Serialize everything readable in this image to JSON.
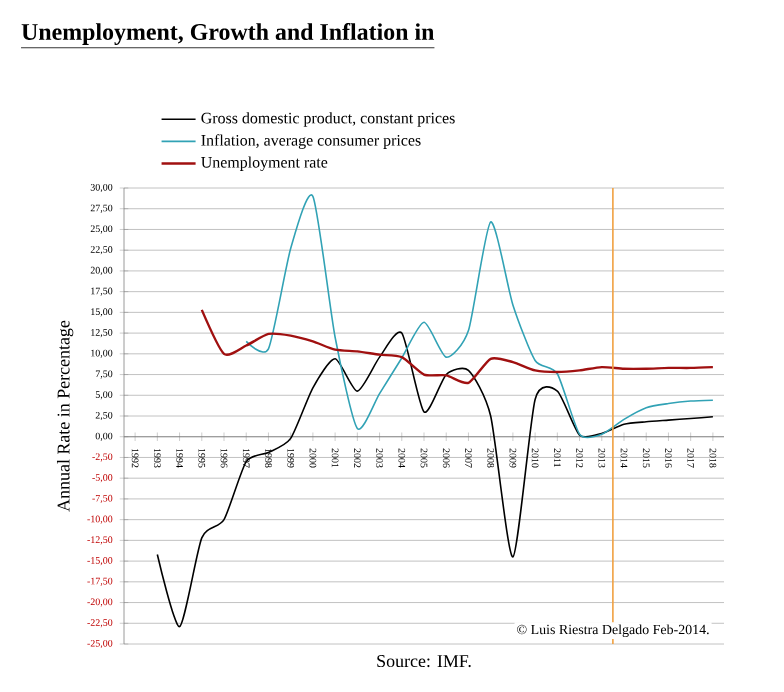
{
  "chart_data": {
    "type": "line",
    "title": "Unemployment, Growth and Inflation in",
    "ylabel": "Annual Rate in Percentage",
    "x": [
      1993,
      1994,
      1995,
      1996,
      1997,
      1998,
      1999,
      2000,
      2001,
      2002,
      2003,
      2004,
      2005,
      2006,
      2007,
      2008,
      2009,
      2010,
      2011,
      2012,
      2013,
      2014,
      2015,
      2016,
      2017,
      2018
    ],
    "series": [
      {
        "name": "Gross domestic product, constant prices",
        "color": "#000000",
        "values": [
          -14.2,
          -22.9,
          -12.2,
          -10.0,
          -3.0,
          -1.9,
          -0.2,
          5.9,
          9.4,
          5.5,
          9.6,
          12.5,
          3.0,
          7.5,
          8.0,
          2.5,
          -14.5,
          4.5,
          5.5,
          0.2,
          0.4,
          1.5,
          1.8,
          2.0,
          2.2,
          2.4
        ]
      },
      {
        "name": "Inflation, average consumer prices",
        "color": "#31a2b5",
        "values": [
          null,
          null,
          null,
          null,
          11.5,
          10.6,
          22.7,
          29.0,
          12.0,
          1.0,
          5.2,
          9.5,
          13.8,
          9.6,
          12.8,
          25.9,
          15.9,
          9.2,
          7.6,
          0.3,
          0.3,
          2.1,
          3.5,
          4.0,
          4.3,
          4.4
        ]
      },
      {
        "name": "Unemployment rate",
        "color": "#a01010",
        "values": [
          null,
          null,
          15.3,
          10.0,
          11.0,
          12.4,
          12.2,
          11.5,
          10.5,
          10.3,
          9.9,
          9.6,
          7.5,
          7.4,
          6.5,
          9.4,
          9.0,
          8.0,
          7.8,
          8.0,
          8.4,
          8.2,
          8.2,
          8.3,
          8.3,
          8.4
        ]
      }
    ],
    "xlim": [
      1991.5,
      2018.5
    ],
    "xticks": [
      1992,
      1993,
      1994,
      1995,
      1996,
      1997,
      1998,
      1999,
      2000,
      2001,
      2002,
      2003,
      2004,
      2005,
      2006,
      2007,
      2008,
      2009,
      2010,
      2011,
      2012,
      2013,
      2014,
      2015,
      2016,
      2017,
      2018
    ],
    "ylim": [
      -25,
      30
    ],
    "yticks": [
      {
        "value": -25,
        "label": "-25,00"
      },
      {
        "value": -22.5,
        "label": "-22,50"
      },
      {
        "value": -20,
        "label": "-20,00"
      },
      {
        "value": -17.5,
        "label": "-17,50"
      },
      {
        "value": -15,
        "label": "-15,00"
      },
      {
        "value": -12.5,
        "label": "-12,50"
      },
      {
        "value": -10,
        "label": "-10,00"
      },
      {
        "value": -7.5,
        "label": "-7,50"
      },
      {
        "value": -5,
        "label": "-5,00"
      },
      {
        "value": -2.5,
        "label": "-2,50"
      },
      {
        "value": 0,
        "label": "0,00"
      },
      {
        "value": 2.5,
        "label": "2,50"
      },
      {
        "value": 5,
        "label": "5,00"
      },
      {
        "value": 7.5,
        "label": "7,50"
      },
      {
        "value": 10,
        "label": "10,00"
      },
      {
        "value": 12.5,
        "label": "12,50"
      },
      {
        "value": 15,
        "label": "15,00"
      },
      {
        "value": 17.5,
        "label": "17,50"
      },
      {
        "value": 20,
        "label": "20,00"
      },
      {
        "value": 22.5,
        "label": "22,50"
      },
      {
        "value": 25,
        "label": "25,00"
      },
      {
        "value": 27.5,
        "label": "27,50"
      },
      {
        "value": 30,
        "label": "30,00"
      }
    ],
    "grid": "y",
    "legend": "top",
    "marker": "none",
    "line_style": "solid",
    "ref_lines": [
      {
        "axis": "x",
        "value": 2013.5,
        "color": "#f0a040"
      }
    ],
    "annotations": [
      "© Luis Riestra Delgado Feb-2014.",
      "Source: IMF."
    ]
  }
}
